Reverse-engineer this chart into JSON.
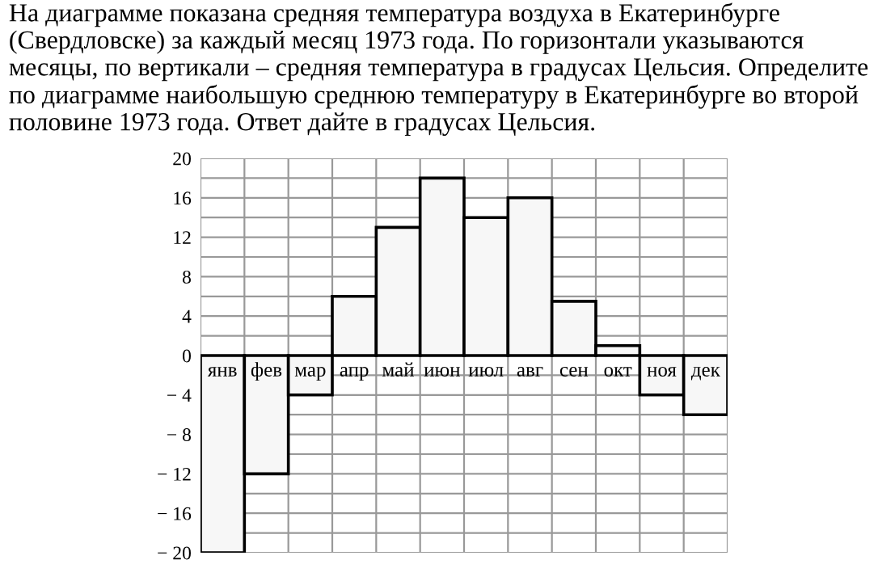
{
  "chart_data": {
    "type": "bar",
    "title": "На диаграмме показана средняя температура воздуха в Екатеринбурге (Свердловске) за каждый месяц 1973 года. По горизонтали указываются месяцы, по вертикали – средняя температура в градусах Цельсия. Определите по диаграмме наибольшую среднюю температуру в Екатеринбурге во второй половине 1973 года. Ответ дайте в градусах Цельсия.",
    "categories": [
      "янв",
      "фев",
      "мар",
      "апр",
      "май",
      "июн",
      "июл",
      "авг",
      "сен",
      "окт",
      "ноя",
      "дек"
    ],
    "values": [
      -20,
      -12,
      -4,
      6,
      13,
      18,
      14,
      16,
      5.5,
      1,
      -4,
      -6
    ],
    "color": "#f7f7f7",
    "ylim": [
      -20,
      20
    ],
    "yticks": [
      {
        "value": -20,
        "label": "− 20"
      },
      {
        "value": -18,
        "label": null
      },
      {
        "value": -16,
        "label": "− 16"
      },
      {
        "value": -14,
        "label": null
      },
      {
        "value": -12,
        "label": "− 12"
      },
      {
        "value": -10,
        "label": null
      },
      {
        "value": -8,
        "label": "− 8"
      },
      {
        "value": -6,
        "label": null
      },
      {
        "value": -4,
        "label": "− 4"
      },
      {
        "value": -2,
        "label": null
      },
      0,
      {
        "value": 2,
        "label": null
      },
      4,
      {
        "value": 6,
        "label": null
      },
      8,
      {
        "value": 10,
        "label": null
      },
      12,
      {
        "value": 14,
        "label": null
      },
      16,
      {
        "value": 18,
        "label": null
      },
      20
    ],
    "grid": true
  }
}
